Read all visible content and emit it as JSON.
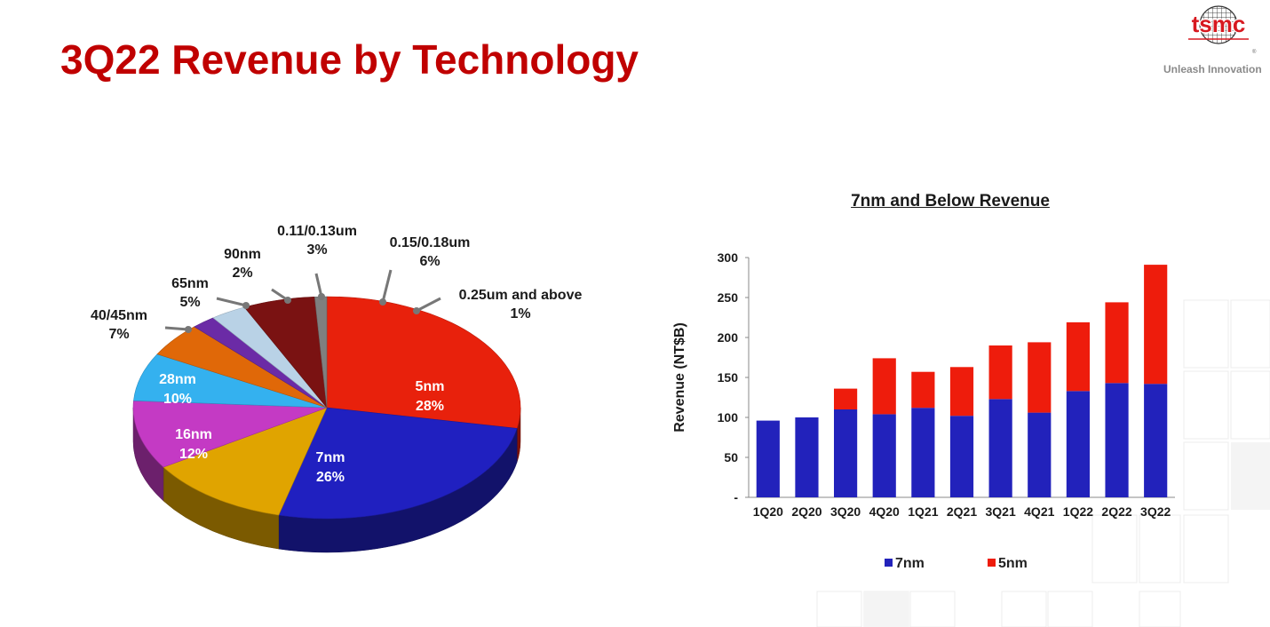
{
  "slide": {
    "title": "3Q22 Revenue by Technology"
  },
  "logo": {
    "wordmark": "tsmc",
    "trademark": "®",
    "tagline": "Unleash Innovation",
    "color": "#d71920"
  },
  "chart_data": [
    {
      "type": "pie",
      "title": "",
      "slices": [
        {
          "label": "5nm",
          "value": 28,
          "display": "28%",
          "color": "#e8210c"
        },
        {
          "label": "7nm",
          "value": 26,
          "display": "26%",
          "color": "#2020c0"
        },
        {
          "label": "16nm",
          "value": 12,
          "display": "12%",
          "color": "#e0a400"
        },
        {
          "label": "28nm",
          "value": 10,
          "display": "10%",
          "color": "#c43ac4"
        },
        {
          "label": "40/45nm",
          "value": 7,
          "display": "7%",
          "color": "#34b1ef"
        },
        {
          "label": "65nm",
          "value": 5,
          "display": "5%",
          "color": "#e06808"
        },
        {
          "label": "90nm",
          "value": 2,
          "display": "2%",
          "color": "#6b2ba6"
        },
        {
          "label": "0.11/0.13um",
          "value": 3,
          "display": "3%",
          "color": "#b9d2e6"
        },
        {
          "label": "0.15/0.18um",
          "value": 6,
          "display": "6%",
          "color": "#7a1212"
        },
        {
          "label": "0.25um and above",
          "value": 1,
          "display": "1%",
          "color": "#7f7f7f"
        }
      ]
    },
    {
      "type": "bar",
      "stacked": true,
      "title": "7nm and Below Revenue",
      "xlabel": "",
      "ylabel": "Revenue (NT$B)",
      "ylim": [
        0,
        300
      ],
      "yticks": [
        "-",
        "50",
        "100",
        "150",
        "200",
        "250",
        "300"
      ],
      "ytick_values": [
        0,
        50,
        100,
        150,
        200,
        250,
        300
      ],
      "categories": [
        "1Q20",
        "2Q20",
        "3Q20",
        "4Q20",
        "1Q21",
        "2Q21",
        "3Q21",
        "4Q21",
        "1Q22",
        "2Q22",
        "3Q22"
      ],
      "series": [
        {
          "name": "7nm",
          "color": "#2222bb",
          "values": [
            96,
            100,
            110,
            104,
            112,
            102,
            123,
            106,
            133,
            143,
            142
          ]
        },
        {
          "name": "5nm",
          "color": "#ee1c0c",
          "values": [
            0,
            0,
            26,
            70,
            45,
            61,
            67,
            88,
            86,
            101,
            149
          ]
        }
      ],
      "legend": "bottom",
      "grid": false
    }
  ]
}
